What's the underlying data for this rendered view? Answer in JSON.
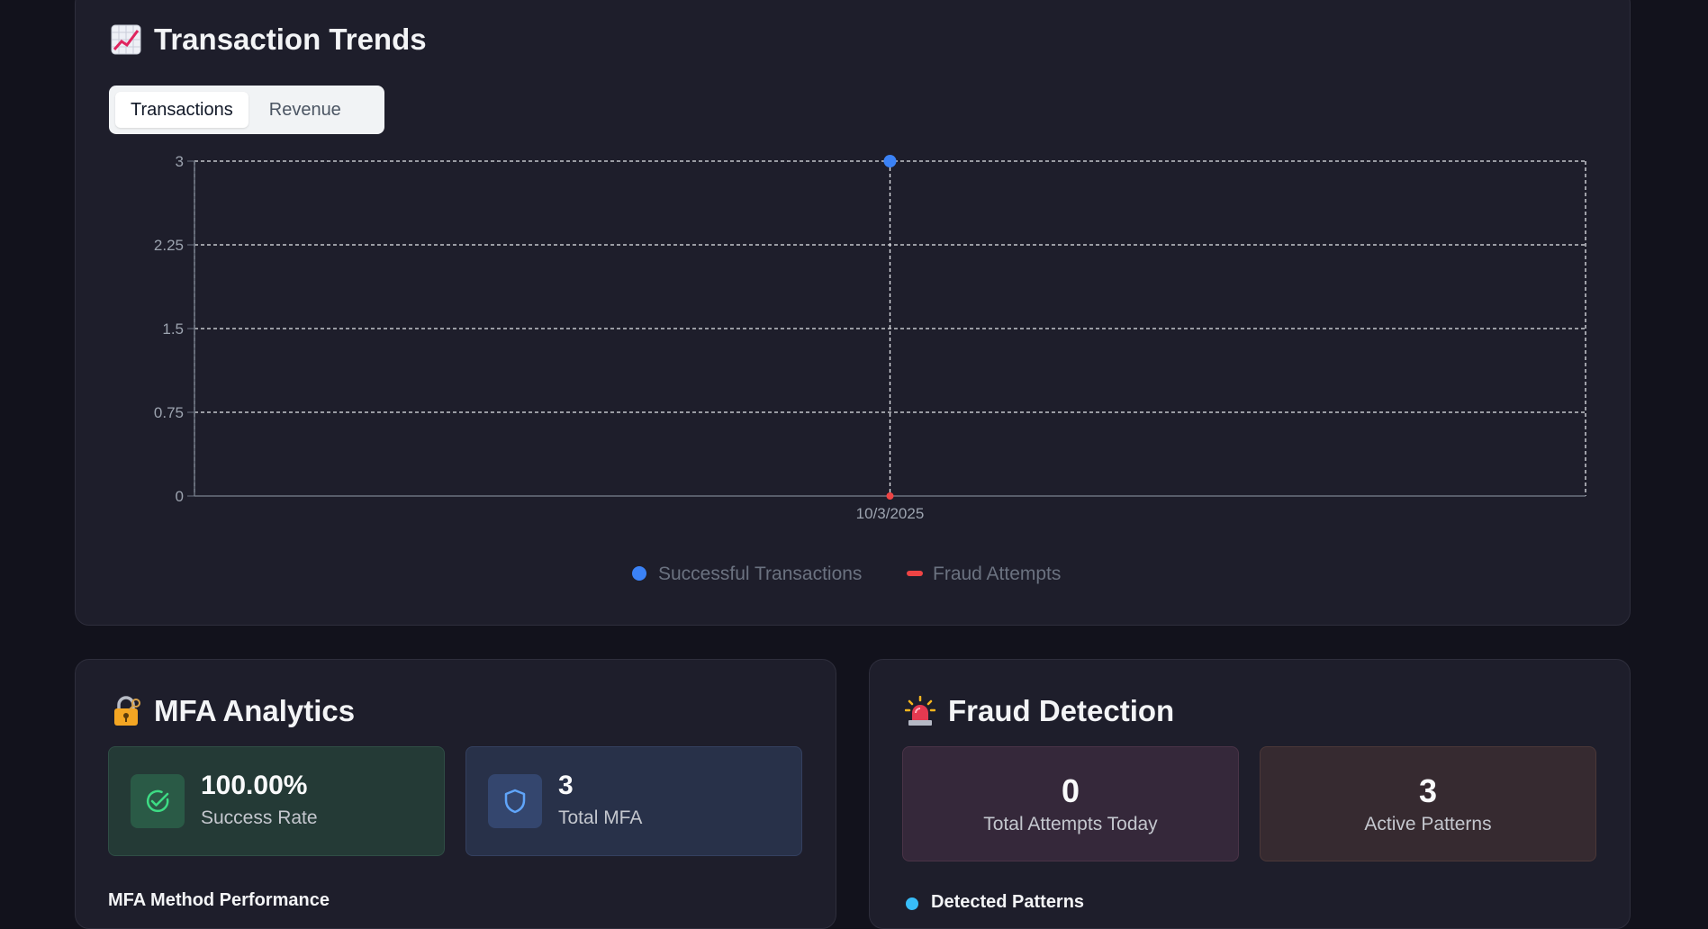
{
  "trends": {
    "title": "Transaction Trends",
    "title_icon": "chart-increasing-icon",
    "tabs": [
      {
        "label": "Transactions",
        "active": true
      },
      {
        "label": "Revenue",
        "active": false
      }
    ]
  },
  "chart_data": {
    "type": "line",
    "x": [
      "10/3/2025"
    ],
    "ylim": [
      0,
      3
    ],
    "yticks": [
      "0",
      "0.75",
      "1.5",
      "2.25",
      "3"
    ],
    "series": [
      {
        "name": "Successful Transactions",
        "values": [
          3
        ],
        "color": "#3b82f6",
        "marker": "circle"
      },
      {
        "name": "Fraud Attempts",
        "values": [
          0
        ],
        "color": "#ef4444",
        "marker": "line"
      }
    ],
    "grid": true,
    "legend_position": "bottom-center"
  },
  "mfa": {
    "title": "MFA Analytics",
    "title_icon": "lock-key-icon",
    "success_rate": "100.00%",
    "success_label": "Success Rate",
    "total": "3",
    "total_label": "Total MFA",
    "section_title": "MFA Method Performance"
  },
  "fraud": {
    "title": "Fraud Detection",
    "title_icon": "police-light-icon",
    "attempts": "0",
    "attempts_label": "Total Attempts Today",
    "patterns": "3",
    "patterns_label": "Active Patterns",
    "section_title": "Detected Patterns"
  },
  "colors": {
    "background": "#12121c",
    "card": "#1e1e2b",
    "accent_blue": "#3b82f6",
    "accent_red": "#ef4444",
    "accent_green": "#22c55e"
  }
}
